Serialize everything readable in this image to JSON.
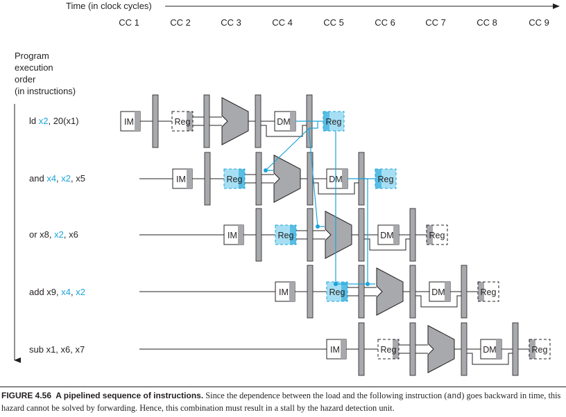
{
  "header": {
    "time_label": "Time (in clock cycles)",
    "cycles": [
      "CC 1",
      "CC 2",
      "CC 3",
      "CC 4",
      "CC 5",
      "CC 6",
      "CC 7",
      "CC 8",
      "CC 9"
    ]
  },
  "side_label": [
    "Program",
    "execution",
    "order",
    "(in instructions)"
  ],
  "instructions": [
    {
      "parts": [
        {
          "text": "ld ",
          "hl": false
        },
        {
          "text": "x2",
          "hl": true
        },
        {
          "text": ", 20(x1)",
          "hl": false
        }
      ]
    },
    {
      "parts": [
        {
          "text": "and ",
          "hl": false
        },
        {
          "text": "x4",
          "hl": true
        },
        {
          "text": ", ",
          "hl": false
        },
        {
          "text": "x2",
          "hl": true
        },
        {
          "text": ", x5",
          "hl": false
        }
      ]
    },
    {
      "parts": [
        {
          "text": "or x8, ",
          "hl": false
        },
        {
          "text": "x2",
          "hl": true
        },
        {
          "text": ", x6",
          "hl": false
        }
      ]
    },
    {
      "parts": [
        {
          "text": "add x9, ",
          "hl": false
        },
        {
          "text": "x4",
          "hl": true
        },
        {
          "text": ", ",
          "hl": false
        },
        {
          "text": "x2",
          "hl": true
        }
      ]
    },
    {
      "parts": [
        {
          "text": "sub x1, x6, x7",
          "hl": false
        }
      ]
    }
  ],
  "units": {
    "im": "IM",
    "reg": "Reg",
    "dm": "DM"
  },
  "colors": {
    "accent": "#1aa3d9",
    "shade": "#a7a9ac",
    "highlight": "#a6dff3",
    "ink": "#231f20"
  },
  "caption": {
    "label": "FIGURE 4.56",
    "title": "A pipelined sequence of instructions.",
    "text_1": "Since the dependence between the load and the following instruction",
    "code": "and",
    "text_2": "goes backward in time, this hazard cannot be solved by forwarding. Hence, this combination must result in a stall by the hazard detection unit."
  }
}
